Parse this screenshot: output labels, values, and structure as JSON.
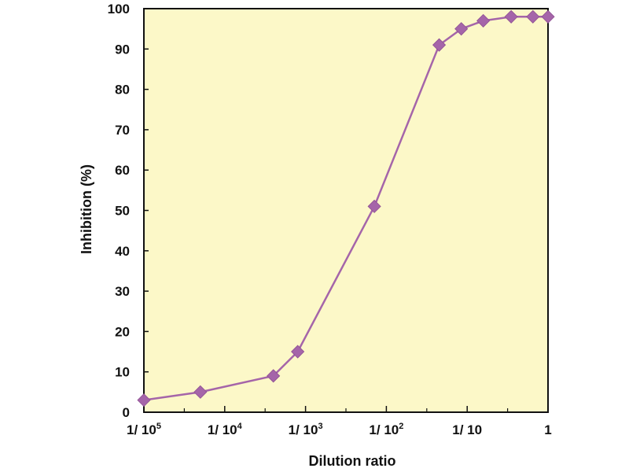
{
  "chart_data": {
    "type": "line",
    "title": "",
    "xlabel": "Dilution ratio",
    "ylabel": "Inhibition (%)",
    "x_scale": "log",
    "xlim": [
      1e-05,
      1
    ],
    "ylim": [
      0,
      100
    ],
    "x_ticks": [
      {
        "value": 1e-05,
        "base": "1/ 10",
        "exp": "5"
      },
      {
        "value": 0.0001,
        "base": "1/ 10",
        "exp": "4"
      },
      {
        "value": 0.001,
        "base": "1/ 10",
        "exp": "3"
      },
      {
        "value": 0.01,
        "base": "1/ 10",
        "exp": "2"
      },
      {
        "value": 0.1,
        "base": "1/ 10",
        "exp": ""
      },
      {
        "value": 1,
        "base": "1",
        "exp": ""
      }
    ],
    "y_ticks": [
      0,
      10,
      20,
      30,
      40,
      50,
      60,
      70,
      80,
      90,
      100
    ],
    "grid": false,
    "legend": "none",
    "background": "#fcf8c8",
    "series": [
      {
        "color": "#a565a9",
        "marker": "diamond",
        "x": [
          1e-05,
          5e-05,
          0.0004,
          0.0008,
          0.0071,
          0.045,
          0.0845,
          0.158,
          0.35,
          0.65,
          1
        ],
        "values": [
          3,
          5,
          9,
          15,
          51,
          91,
          95,
          97,
          98,
          98,
          98
        ]
      }
    ]
  }
}
